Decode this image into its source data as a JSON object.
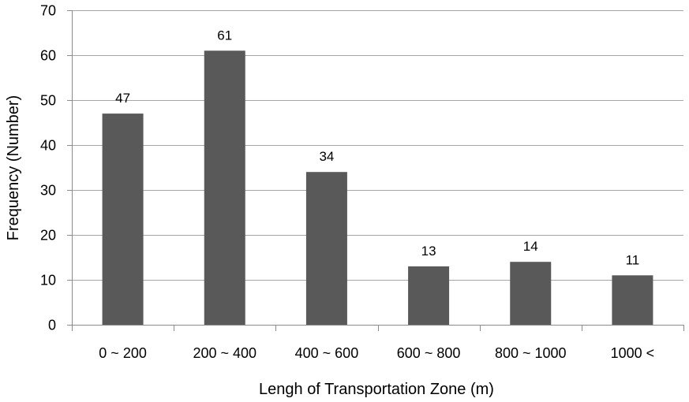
{
  "chart_data": {
    "type": "bar",
    "categories": [
      "0 ~ 200",
      "200 ~ 400",
      "400 ~ 600",
      "600 ~ 800",
      "800 ~ 1000",
      "1000 <"
    ],
    "values": [
      47,
      61,
      34,
      13,
      14,
      11
    ],
    "data_labels": [
      "47",
      "61",
      "34",
      "13",
      "14",
      "11"
    ],
    "title": "",
    "xlabel": "Lengh of Transportation Zone (m)",
    "ylabel": "Frequency (Number)",
    "ylim": [
      0,
      70
    ],
    "yticks": [
      0,
      10,
      20,
      30,
      40,
      50,
      60,
      70
    ],
    "grid": true,
    "legend": "none",
    "colors": {
      "bar": "#595959",
      "grid": "#a6a6a6",
      "axis": "#8c8c8c"
    }
  }
}
